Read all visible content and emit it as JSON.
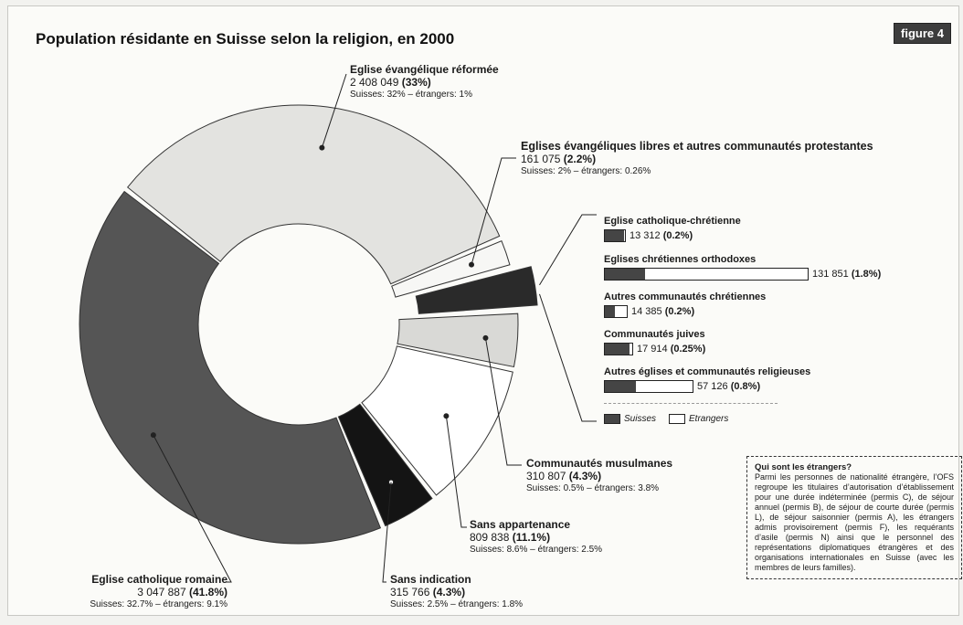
{
  "title": "Population résidante en Suisse selon la religion, en 2000",
  "figure_label": "figure 4",
  "colors": {
    "reformee": "#e3e3e0",
    "libres": "#f7f7f5",
    "autres_chretiens": "#2a2a2a",
    "musulmanes": "#d9d9d6",
    "sans_appartenance": "#ffffff",
    "sans_indication": "#141414",
    "catholique_romaine": "#555555"
  },
  "chart_data": {
    "type": "pie",
    "title": "Population résidante en Suisse selon la religion, en 2000",
    "segments": [
      {
        "name": "Eglise évangélique réformée",
        "value": 2408049,
        "percent": 33,
        "detail": "Suisses: 32% – étrangers: 1%",
        "value_label": "2 408 049",
        "percent_label": "(33%)"
      },
      {
        "name": "Eglises évangéliques libres et autres communautés protestantes",
        "value": 161075,
        "percent": 2.2,
        "detail": "Suisses: 2% – étrangers: 0.26%",
        "value_label": "161 075",
        "percent_label": "(2.2%)"
      },
      {
        "name": "Autres communautés chrétiennes (détail à droite)",
        "value": 234588,
        "percent": 3.2,
        "exploded": true
      },
      {
        "name": "Communautés musulmanes",
        "value": 310807,
        "percent": 4.3,
        "detail": "Suisses: 0.5% – étrangers: 3.8%",
        "value_label": "310 807",
        "percent_label": "(4.3%)"
      },
      {
        "name": "Sans appartenance",
        "value": 809838,
        "percent": 11.1,
        "detail": "Suisses: 8.6% – étrangers: 2.5%",
        "value_label": "809 838",
        "percent_label": "(11.1%)"
      },
      {
        "name": "Sans indication",
        "value": 315766,
        "percent": 4.3,
        "detail": "Suisses: 2.5% – étrangers: 1.8%",
        "value_label": "315 766",
        "percent_label": "(4.3%)"
      },
      {
        "name": "Eglise catholique romaine",
        "value": 3047887,
        "percent": 41.8,
        "detail": "Suisses: 32.7% – étrangers: 9.1%",
        "value_label": "3 047 887",
        "percent_label": "(41.8%)"
      }
    ],
    "breakdown": {
      "type": "bar",
      "legend": [
        "Suisses",
        "Etrangers"
      ],
      "max_value": 131851,
      "items": [
        {
          "name": "Eglise catholique-chrétienne",
          "value": 13312,
          "swiss_share": 0.95,
          "value_label": "13 312",
          "percent_label": "(0.2%)"
        },
        {
          "name": "Eglises chrétiennes orthodoxes",
          "value": 131851,
          "swiss_share": 0.2,
          "value_label": "131 851",
          "percent_label": "(1.8%)"
        },
        {
          "name": "Autres communautés chrétiennes",
          "value": 14385,
          "swiss_share": 0.45,
          "value_label": "14 385",
          "percent_label": "(0.2%)"
        },
        {
          "name": "Communautés juives",
          "value": 17914,
          "swiss_share": 0.9,
          "value_label": "17 914",
          "percent_label": "(0.25%)"
        },
        {
          "name": "Autres églises et communautés religieuses",
          "value": 57126,
          "swiss_share": 0.35,
          "value_label": "57 126",
          "percent_label": "(0.8%)"
        }
      ]
    }
  },
  "infobox": {
    "heading": "Qui sont les étrangers?",
    "body": "Parmi les personnes de nationalité étrangère, l’OFS regroupe les titulaires d’autorisation d’établissement pour une durée indéterminée (permis C), de séjour annuel (permis B), de séjour de courte durée (permis L), de séjour saisonnier (permis A), les étrangers admis provisoirement (permis F), les requérants d’asile (permis N) ainsi que le personnel des représentations diplomatiques étrangères et des organisations internationales en Suisse (avec les membres de leurs familles)."
  }
}
